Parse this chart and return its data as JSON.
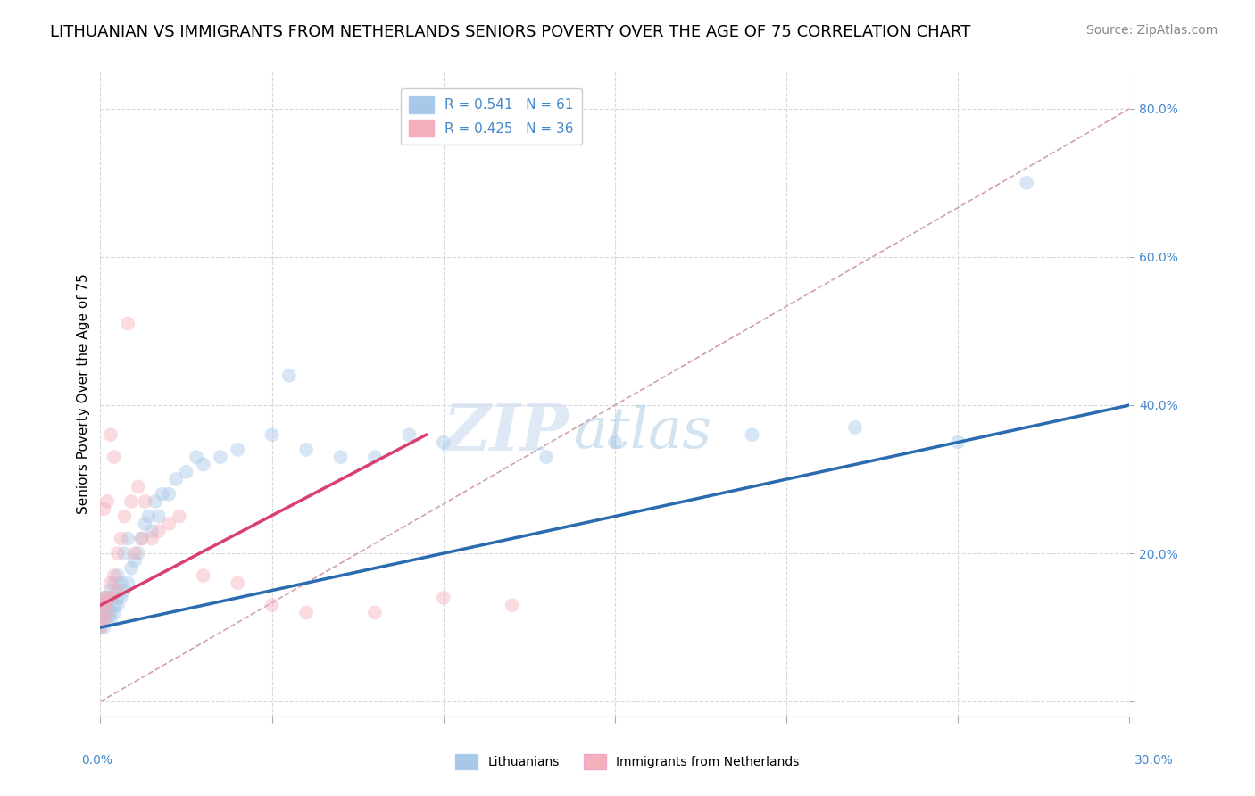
{
  "title": "LITHUANIAN VS IMMIGRANTS FROM NETHERLANDS SENIORS POVERTY OVER THE AGE OF 75 CORRELATION CHART",
  "source": "Source: ZipAtlas.com",
  "ylabel": "Seniors Poverty Over the Age of 75",
  "legend_entries": [
    {
      "label": "R = 0.541   N = 61",
      "color": "#a8c8e8"
    },
    {
      "label": "R = 0.425   N = 36",
      "color": "#f4b8c0"
    }
  ],
  "blue_color": "#a8c8e8",
  "pink_color": "#f4b0bc",
  "blue_line_color": "#2b6cb0",
  "pink_line_color": "#d94070",
  "ref_line_color": "#d0a0b0",
  "background_color": "#ffffff",
  "grid_color": "#d8d8d8",
  "blue_scatter_x": [
    0.0,
    0.0,
    0.0,
    0.001,
    0.001,
    0.001,
    0.001,
    0.001,
    0.001,
    0.002,
    0.002,
    0.002,
    0.002,
    0.002,
    0.003,
    0.003,
    0.003,
    0.003,
    0.004,
    0.004,
    0.004,
    0.005,
    0.005,
    0.005,
    0.005,
    0.006,
    0.006,
    0.007,
    0.007,
    0.008,
    0.008,
    0.009,
    0.01,
    0.011,
    0.012,
    0.013,
    0.014,
    0.015,
    0.016,
    0.017,
    0.018,
    0.02,
    0.022,
    0.025,
    0.028,
    0.03,
    0.035,
    0.04,
    0.05,
    0.055,
    0.06,
    0.07,
    0.08,
    0.09,
    0.1,
    0.13,
    0.15,
    0.19,
    0.22,
    0.25,
    0.27
  ],
  "blue_scatter_y": [
    0.1,
    0.11,
    0.12,
    0.1,
    0.11,
    0.12,
    0.13,
    0.13,
    0.14,
    0.11,
    0.12,
    0.13,
    0.14,
    0.14,
    0.11,
    0.12,
    0.14,
    0.15,
    0.12,
    0.13,
    0.16,
    0.13,
    0.14,
    0.15,
    0.17,
    0.14,
    0.16,
    0.15,
    0.2,
    0.16,
    0.22,
    0.18,
    0.19,
    0.2,
    0.22,
    0.24,
    0.25,
    0.23,
    0.27,
    0.25,
    0.28,
    0.28,
    0.3,
    0.31,
    0.33,
    0.32,
    0.33,
    0.34,
    0.36,
    0.44,
    0.34,
    0.33,
    0.33,
    0.36,
    0.35,
    0.33,
    0.35,
    0.36,
    0.37,
    0.35,
    0.7
  ],
  "pink_scatter_x": [
    0.0,
    0.0,
    0.0,
    0.001,
    0.001,
    0.001,
    0.001,
    0.002,
    0.002,
    0.002,
    0.003,
    0.003,
    0.003,
    0.004,
    0.004,
    0.005,
    0.005,
    0.006,
    0.007,
    0.008,
    0.009,
    0.01,
    0.011,
    0.012,
    0.013,
    0.015,
    0.017,
    0.02,
    0.023,
    0.03,
    0.04,
    0.05,
    0.06,
    0.08,
    0.1,
    0.12
  ],
  "pink_scatter_y": [
    0.1,
    0.11,
    0.13,
    0.11,
    0.13,
    0.14,
    0.26,
    0.12,
    0.14,
    0.27,
    0.14,
    0.16,
    0.36,
    0.17,
    0.33,
    0.15,
    0.2,
    0.22,
    0.25,
    0.51,
    0.27,
    0.2,
    0.29,
    0.22,
    0.27,
    0.22,
    0.23,
    0.24,
    0.25,
    0.17,
    0.16,
    0.13,
    0.12,
    0.12,
    0.14,
    0.13
  ],
  "blue_regline_x": [
    0.0,
    0.3
  ],
  "blue_regline_y": [
    0.1,
    0.4
  ],
  "pink_regline_x": [
    0.0,
    0.095
  ],
  "pink_regline_y": [
    0.13,
    0.36
  ],
  "refline_x": [
    0.0,
    0.3
  ],
  "refline_y": [
    0.0,
    0.8
  ],
  "xlim": [
    0.0,
    0.3
  ],
  "ylim": [
    -0.02,
    0.85
  ],
  "xtick_positions": [
    0.0,
    0.05,
    0.1,
    0.15,
    0.2,
    0.25,
    0.3
  ],
  "ytick_positions": [
    0.0,
    0.2,
    0.4,
    0.6,
    0.8
  ],
  "ytick_labels": [
    "",
    "20.0%",
    "40.0%",
    "60.0%",
    "80.0%"
  ],
  "marker_size": 130,
  "marker_alpha": 0.45,
  "title_fontsize": 13,
  "source_fontsize": 10,
  "axis_label_fontsize": 11,
  "tick_fontsize": 10,
  "legend_fontsize": 11,
  "watermark_zip": "ZIP",
  "watermark_atlas": "atlas",
  "watermark_color": "#ccddf0",
  "tick_label_color": "#4488cc"
}
